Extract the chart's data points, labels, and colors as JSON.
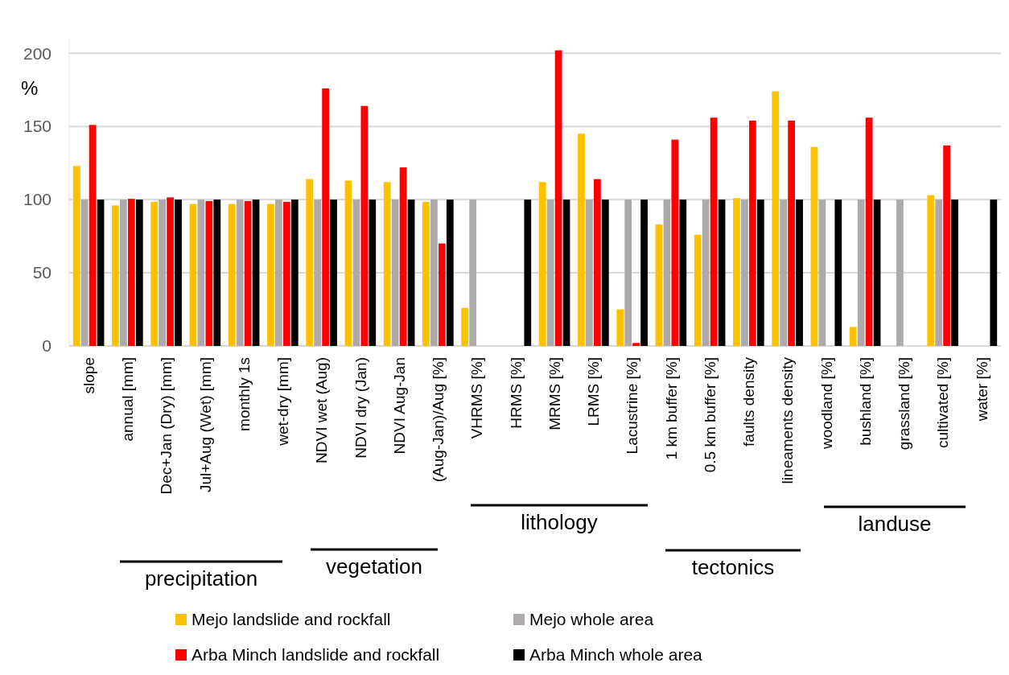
{
  "chart_data": {
    "type": "bar",
    "ylabel": "%",
    "categories": [
      "slope",
      "annual [mm]",
      "Dec+Jan (Dry) [mm]",
      "Jul+Aug (Wet) [mm]",
      "monthly 1s",
      "wet-dry [mm]",
      "NDVI wet (Aug)",
      "NDVI dry (Jan)",
      "NDVI Aug-Jan",
      "(Aug-Jan)/Aug  [%]",
      "VHRMS [%]",
      "HRMS [%]",
      "MRMS [%]",
      "LRMS [%]",
      "Lacustrine [%]",
      "1 km buffer [%]",
      "0.5 km buffer [%]",
      "faults density",
      "lineaments density",
      "woodland [%]",
      "bushland [%]",
      "grassland [%]",
      "cultivated [%]",
      "water [%]"
    ],
    "series": [
      {
        "name": "Mejo landslide and rockfall",
        "color": "#ffc000",
        "values": [
          123,
          96,
          98.5,
          97,
          97,
          97,
          114,
          113,
          112,
          98.5,
          26,
          null,
          112,
          145,
          25,
          83,
          76,
          101,
          174,
          136,
          13,
          null,
          103,
          null
        ]
      },
      {
        "name": "Mejo whole area",
        "color": "#aeaaaa",
        "values": [
          100,
          100,
          100,
          100,
          100,
          100,
          100,
          100,
          100,
          100,
          100,
          null,
          100,
          100,
          100,
          100,
          100,
          100,
          100,
          100,
          100,
          100,
          100,
          null
        ]
      },
      {
        "name": "Arba Minch landslide and rockfall",
        "color": "#ff0000",
        "values": [
          151,
          100.5,
          101.5,
          99,
          99,
          98.5,
          176,
          164,
          122,
          70,
          null,
          null,
          202,
          114,
          2,
          141,
          156,
          154,
          154,
          null,
          156,
          null,
          137,
          null
        ]
      },
      {
        "name": "Arba Minch whole area",
        "color": "#000000",
        "values": [
          100,
          100,
          100,
          100,
          100,
          100,
          100,
          100,
          100,
          100,
          null,
          100,
          100,
          100,
          100,
          100,
          100,
          100,
          100,
          100,
          100,
          null,
          100,
          100
        ]
      }
    ],
    "ylim": [
      0,
      210
    ],
    "yticks": [
      0,
      50,
      100,
      150,
      200
    ],
    "grid": "y",
    "legend": "bottom",
    "annotations": [
      "precipitation",
      "vegetation",
      "lithology",
      "tectonics",
      "landuse"
    ]
  }
}
